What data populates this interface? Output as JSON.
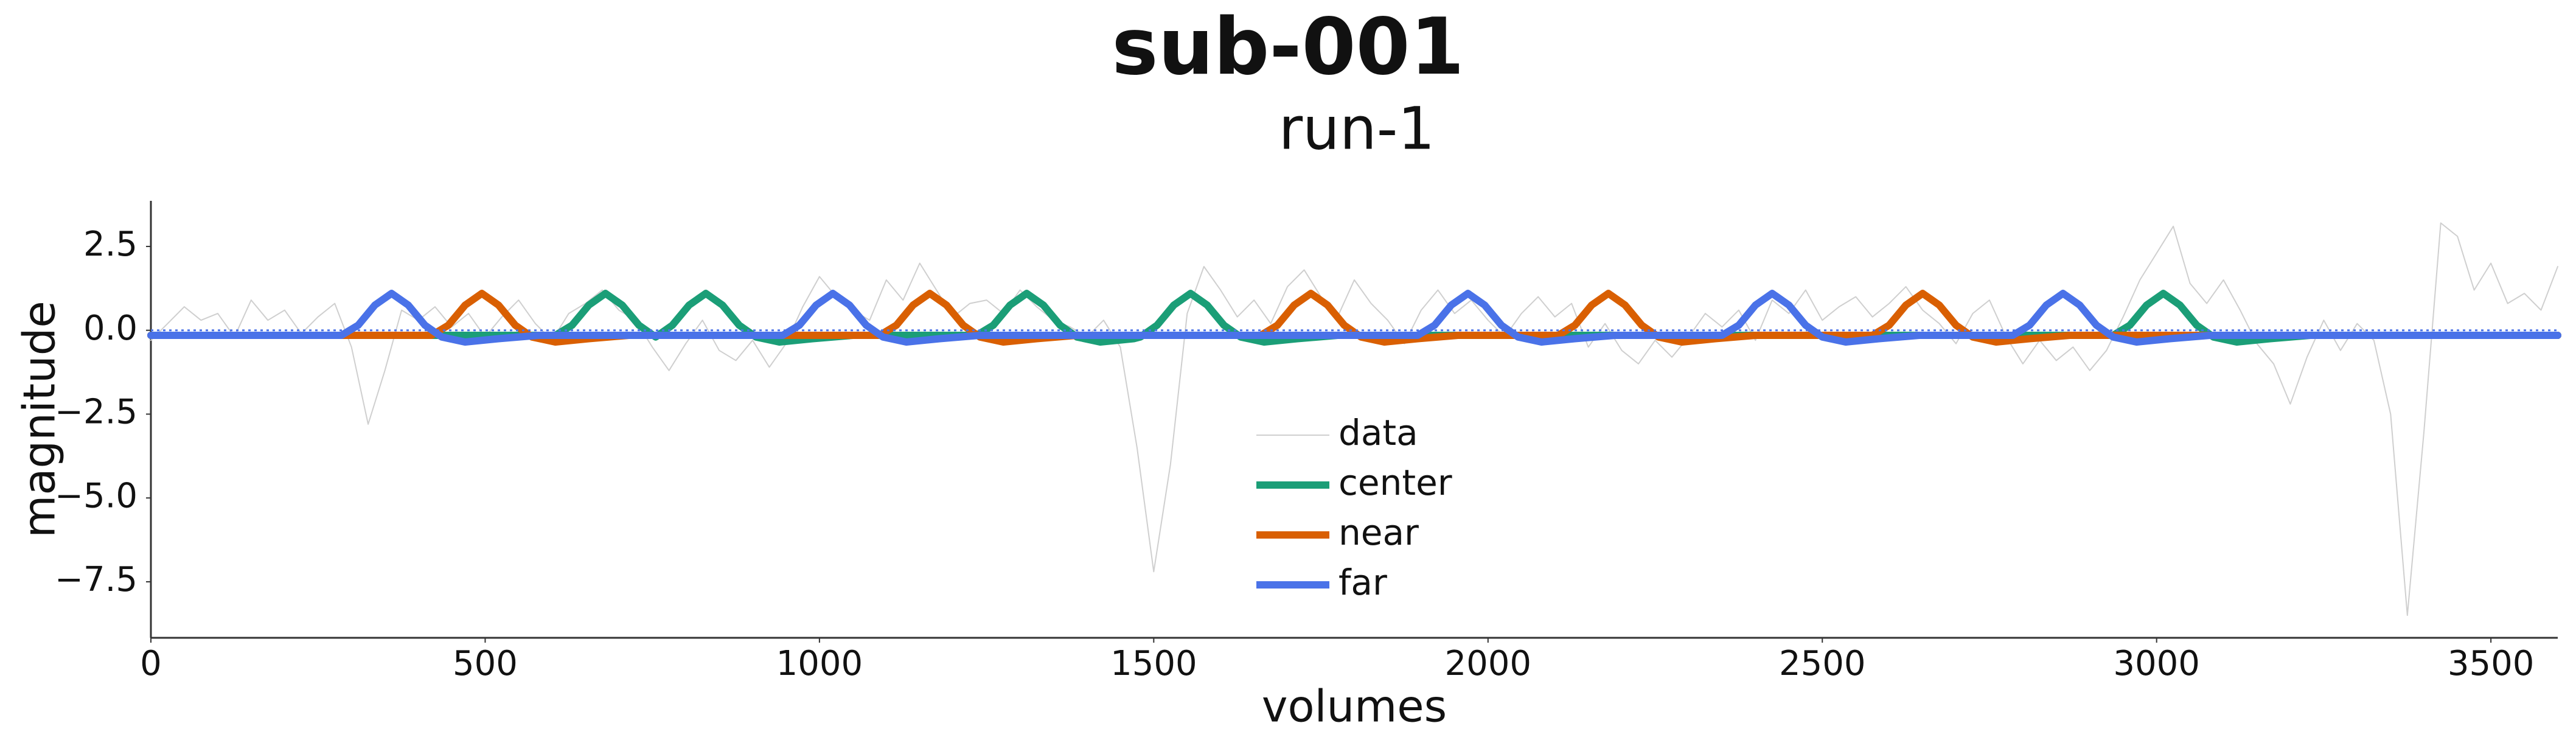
{
  "chart_data": {
    "type": "line",
    "title": "sub-001",
    "subtitle": "run-1",
    "x_label": "volumes",
    "y_label": "magnitude",
    "xlim": [
      0,
      3600
    ],
    "ylim": [
      -9.17,
      3.86
    ],
    "xticks": [
      0,
      500,
      1000,
      1500,
      2000,
      2500,
      3000,
      3500
    ],
    "yticks": [
      2.5,
      0.0,
      -2.5,
      -5.0,
      -7.5
    ],
    "hline": 0,
    "hline_color": "#4a72e8",
    "legend": "lower center",
    "series": [
      {
        "name": "data",
        "color": "#cfcfcf",
        "width": 2,
        "x": [
          0,
          25,
          50,
          75,
          100,
          125,
          150,
          175,
          200,
          225,
          250,
          275,
          300,
          325,
          350,
          375,
          400,
          425,
          450,
          475,
          500,
          525,
          550,
          575,
          600,
          625,
          650,
          675,
          700,
          725,
          750,
          775,
          800,
          825,
          850,
          875,
          900,
          925,
          950,
          975,
          1000,
          1025,
          1050,
          1075,
          1100,
          1125,
          1150,
          1175,
          1200,
          1225,
          1250,
          1275,
          1300,
          1325,
          1350,
          1375,
          1400,
          1425,
          1450,
          1475,
          1500,
          1525,
          1550,
          1575,
          1600,
          1625,
          1650,
          1675,
          1700,
          1725,
          1750,
          1775,
          1800,
          1825,
          1850,
          1875,
          1900,
          1925,
          1950,
          1975,
          2000,
          2025,
          2050,
          2075,
          2100,
          2125,
          2150,
          2175,
          2200,
          2225,
          2250,
          2275,
          2300,
          2325,
          2350,
          2375,
          2400,
          2425,
          2450,
          2475,
          2500,
          2525,
          2550,
          2575,
          2600,
          2625,
          2650,
          2675,
          2700,
          2725,
          2750,
          2775,
          2800,
          2825,
          2850,
          2875,
          2900,
          2925,
          2950,
          2975,
          3000,
          3025,
          3050,
          3075,
          3100,
          3125,
          3150,
          3175,
          3200,
          3225,
          3250,
          3275,
          3300,
          3325,
          3350,
          3375,
          3400,
          3425,
          3450,
          3475,
          3500,
          3525,
          3550,
          3575,
          3600
        ],
        "values": [
          -0.3,
          0.2,
          0.7,
          0.3,
          0.5,
          -0.2,
          0.9,
          0.3,
          0.6,
          -0.1,
          0.4,
          0.8,
          -0.5,
          -2.8,
          -1.2,
          0.6,
          0.3,
          0.7,
          0.1,
          0.5,
          -0.2,
          0.4,
          0.9,
          0.2,
          -0.3,
          0.5,
          0.8,
          1.2,
          0.6,
          0.3,
          -0.5,
          -1.2,
          -0.4,
          0.3,
          -0.6,
          -0.9,
          -0.3,
          -1.1,
          -0.4,
          0.7,
          1.6,
          1.0,
          0.6,
          0.3,
          1.5,
          0.9,
          2.0,
          1.2,
          0.4,
          0.8,
          0.9,
          0.5,
          1.2,
          0.7,
          0.3,
          0.1,
          -0.2,
          0.3,
          -0.5,
          -3.5,
          -7.2,
          -4.0,
          0.5,
          1.9,
          1.2,
          0.4,
          0.9,
          0.2,
          1.3,
          1.8,
          1.0,
          0.4,
          1.5,
          0.8,
          0.3,
          -0.4,
          0.6,
          1.2,
          0.5,
          0.9,
          0.3,
          -0.2,
          0.5,
          1.0,
          0.4,
          0.8,
          -0.5,
          0.2,
          -0.6,
          -1.0,
          -0.3,
          -0.8,
          -0.2,
          0.5,
          0.1,
          0.6,
          -0.3,
          0.9,
          0.5,
          1.2,
          0.3,
          0.7,
          1.0,
          0.4,
          0.8,
          1.3,
          0.6,
          0.2,
          -0.4,
          0.5,
          0.9,
          -0.2,
          -1.0,
          -0.3,
          -0.9,
          -0.5,
          -1.2,
          -0.6,
          0.4,
          1.5,
          2.3,
          3.1,
          1.4,
          0.8,
          1.5,
          0.6,
          -0.4,
          -1.0,
          -2.2,
          -0.8,
          0.3,
          -0.6,
          0.2,
          -0.3,
          -2.5,
          -8.5,
          -3.0,
          3.2,
          2.8,
          1.2,
          2.0,
          0.8,
          1.1,
          0.6,
          1.9
        ]
      },
      {
        "name": "center",
        "color": "#1b9e77",
        "width": 12,
        "x": [
          0,
          605,
          630,
          655,
          680,
          705,
          730,
          755,
          780,
          805,
          830,
          855,
          880,
          905,
          940,
          990,
          1050,
          1235,
          1260,
          1285,
          1310,
          1335,
          1360,
          1385,
          1420,
          1470,
          1480,
          1505,
          1530,
          1555,
          1580,
          1605,
          1630,
          1665,
          1715,
          1775,
          2935,
          2960,
          2985,
          3010,
          3035,
          3060,
          3085,
          3120,
          3170,
          3230,
          3600
        ],
        "values": [
          -0.15,
          -0.15,
          0.15,
          0.75,
          1.1,
          0.75,
          0.15,
          -0.2,
          0.15,
          0.75,
          1.1,
          0.75,
          0.15,
          -0.2,
          -0.35,
          -0.25,
          -0.15,
          -0.15,
          0.15,
          0.75,
          1.1,
          0.75,
          0.15,
          -0.2,
          -0.35,
          -0.25,
          -0.2,
          0.15,
          0.75,
          1.1,
          0.75,
          0.15,
          -0.2,
          -0.35,
          -0.25,
          -0.15,
          -0.15,
          0.15,
          0.75,
          1.1,
          0.75,
          0.15,
          -0.2,
          -0.35,
          -0.25,
          -0.15,
          -0.15
        ]
      },
      {
        "name": "near",
        "color": "#d95f02",
        "width": 12,
        "x": [
          0,
          420,
          445,
          470,
          495,
          520,
          545,
          570,
          605,
          655,
          715,
          1090,
          1115,
          1140,
          1165,
          1190,
          1215,
          1240,
          1275,
          1325,
          1385,
          1660,
          1685,
          1710,
          1735,
          1760,
          1785,
          1810,
          1845,
          1895,
          1955,
          2105,
          2130,
          2155,
          2180,
          2205,
          2230,
          2255,
          2290,
          2340,
          2400,
          2575,
          2600,
          2625,
          2650,
          2675,
          2700,
          2725,
          2760,
          2810,
          2870,
          3600
        ],
        "values": [
          -0.15,
          -0.15,
          0.15,
          0.75,
          1.1,
          0.75,
          0.15,
          -0.2,
          -0.35,
          -0.25,
          -0.15,
          -0.15,
          0.15,
          0.75,
          1.1,
          0.75,
          0.15,
          -0.2,
          -0.35,
          -0.25,
          -0.15,
          -0.15,
          0.15,
          0.75,
          1.1,
          0.75,
          0.15,
          -0.2,
          -0.35,
          -0.25,
          -0.15,
          -0.15,
          0.15,
          0.75,
          1.1,
          0.75,
          0.15,
          -0.2,
          -0.35,
          -0.25,
          -0.15,
          -0.15,
          0.15,
          0.75,
          1.1,
          0.75,
          0.15,
          -0.2,
          -0.35,
          -0.25,
          -0.15,
          -0.15
        ]
      },
      {
        "name": "far",
        "color": "#4a72e8",
        "width": 12,
        "x": [
          0,
          285,
          310,
          335,
          360,
          385,
          410,
          435,
          470,
          520,
          580,
          945,
          970,
          995,
          1020,
          1045,
          1070,
          1095,
          1130,
          1180,
          1240,
          1895,
          1920,
          1945,
          1970,
          1995,
          2020,
          2045,
          2080,
          2130,
          2190,
          2350,
          2375,
          2400,
          2425,
          2450,
          2475,
          2500,
          2535,
          2585,
          2645,
          2785,
          2810,
          2835,
          2860,
          2885,
          2910,
          2935,
          2970,
          3020,
          3080,
          3600
        ],
        "values": [
          -0.15,
          -0.15,
          0.15,
          0.75,
          1.1,
          0.75,
          0.15,
          -0.2,
          -0.35,
          -0.25,
          -0.15,
          -0.15,
          0.15,
          0.75,
          1.1,
          0.75,
          0.15,
          -0.2,
          -0.35,
          -0.25,
          -0.15,
          -0.15,
          0.15,
          0.75,
          1.1,
          0.75,
          0.15,
          -0.2,
          -0.35,
          -0.25,
          -0.15,
          -0.15,
          0.15,
          0.75,
          1.1,
          0.75,
          0.15,
          -0.2,
          -0.35,
          -0.25,
          -0.15,
          -0.15,
          0.15,
          0.75,
          1.1,
          0.75,
          0.15,
          -0.2,
          -0.35,
          -0.25,
          -0.15,
          -0.15
        ]
      }
    ]
  }
}
